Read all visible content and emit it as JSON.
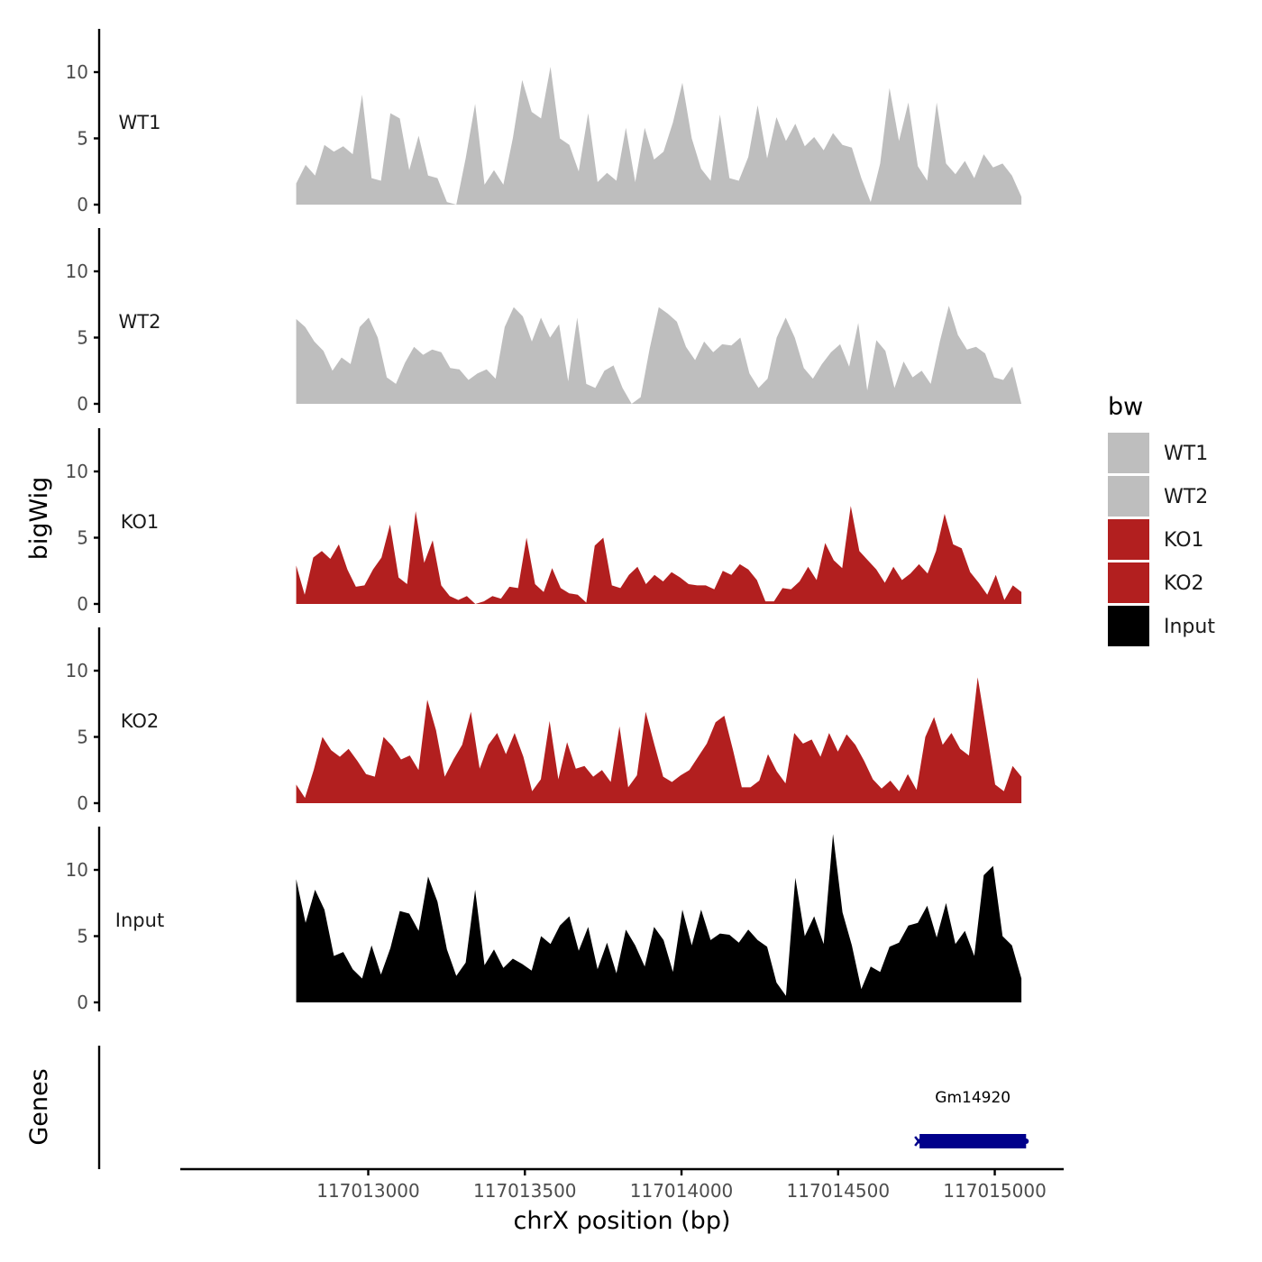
{
  "chart_data": {
    "type": "area",
    "ylabel": "bigWig",
    "xlabel": "chrX position (bp)",
    "xlim": [
      117012400,
      117015220
    ],
    "x_ticks": [
      117013000,
      117013500,
      117014000,
      117014500,
      117015000
    ],
    "x_tick_labels": [
      "117013000",
      "117013500",
      "117014000",
      "117014500",
      "117015000"
    ],
    "ylim": [
      0,
      13.5
    ],
    "y_ticks": [
      0,
      5,
      10
    ],
    "y_tick_labels": [
      "0",
      "5",
      "10"
    ],
    "data_x_range": [
      117012770,
      117015085
    ],
    "legend": {
      "title": "bw",
      "position": "right",
      "entries": [
        {
          "label": "WT1",
          "color": "#bebebe"
        },
        {
          "label": "WT2",
          "color": "#bebebe"
        },
        {
          "label": "KO1",
          "color": "#b21f1f"
        },
        {
          "label": "KO2",
          "color": "#b21f1f"
        },
        {
          "label": "Input",
          "color": "#000000"
        }
      ]
    },
    "series": [
      {
        "name": "WT1",
        "color": "#bebebe",
        "values": [
          1.6,
          3.0,
          2.2,
          4.5,
          4.0,
          4.4,
          3.8,
          8.3,
          2.0,
          1.8,
          6.9,
          6.5,
          2.6,
          5.2,
          2.2,
          2.0,
          0.2,
          0.0,
          3.5,
          7.6,
          1.5,
          2.6,
          1.5,
          5.0,
          9.4,
          7.0,
          6.5,
          10.4,
          5.0,
          4.5,
          2.5,
          6.9,
          1.7,
          2.4,
          1.8,
          5.8,
          1.7,
          5.8,
          3.4,
          4.0,
          6.2,
          9.2,
          5.0,
          2.7,
          1.8,
          6.8,
          2.0,
          1.8,
          3.6,
          7.5,
          3.5,
          6.6,
          4.8,
          6.1,
          4.4,
          5.1,
          4.1,
          5.4,
          4.5,
          4.3,
          2.0,
          0.2,
          3.1,
          8.8,
          4.8,
          7.7,
          2.9,
          1.8,
          7.7,
          3.1,
          2.3,
          3.3,
          2.0,
          3.8,
          2.8,
          3.1,
          2.2,
          0.6
        ]
      },
      {
        "name": "WT2",
        "color": "#bebebe",
        "values": [
          6.4,
          5.8,
          4.7,
          4.0,
          2.5,
          3.5,
          3.0,
          5.8,
          6.5,
          5.0,
          2.0,
          1.5,
          3.1,
          4.3,
          3.7,
          4.1,
          3.9,
          2.7,
          2.6,
          1.8,
          2.3,
          2.6,
          1.9,
          5.8,
          7.3,
          6.6,
          4.7,
          6.5,
          5.0,
          6.0,
          1.7,
          6.5,
          1.5,
          1.2,
          2.5,
          2.9,
          1.2,
          0.0,
          0.5,
          4.2,
          7.3,
          6.8,
          6.2,
          4.3,
          3.3,
          4.7,
          3.9,
          4.5,
          4.4,
          5.0,
          2.3,
          1.2,
          1.9,
          5.0,
          6.5,
          5.0,
          2.7,
          1.9,
          3.0,
          3.9,
          4.5,
          2.8,
          6.1,
          1.0,
          4.8,
          4.0,
          1.2,
          3.2,
          2.0,
          2.5,
          1.5,
          4.7,
          7.4,
          5.2,
          4.1,
          4.3,
          3.8,
          2.0,
          1.8,
          2.8,
          0.0
        ]
      },
      {
        "name": "KO1",
        "color": "#b21f1f",
        "values": [
          2.9,
          0.7,
          3.5,
          4.0,
          3.4,
          4.5,
          2.6,
          1.3,
          1.4,
          2.6,
          3.5,
          6.0,
          2.0,
          1.5,
          7.0,
          3.1,
          4.8,
          1.4,
          0.6,
          0.3,
          0.6,
          0.0,
          0.2,
          0.6,
          0.4,
          1.3,
          1.2,
          5.0,
          1.5,
          0.9,
          2.7,
          1.2,
          0.8,
          0.7,
          0.1,
          4.4,
          5.0,
          1.4,
          1.2,
          2.2,
          2.8,
          1.5,
          2.2,
          1.7,
          2.4,
          2.0,
          1.5,
          1.4,
          1.4,
          1.1,
          2.5,
          2.2,
          3.0,
          2.6,
          1.8,
          0.2,
          0.2,
          1.2,
          1.1,
          1.7,
          2.8,
          1.8,
          4.6,
          3.3,
          2.7,
          7.4,
          4.0,
          3.3,
          2.6,
          1.6,
          2.8,
          1.8,
          2.3,
          3.0,
          2.3,
          4.0,
          6.8,
          4.5,
          4.2,
          2.4,
          1.6,
          0.7,
          2.2,
          0.3,
          1.4,
          0.9
        ]
      },
      {
        "name": "KO2",
        "color": "#b21f1f",
        "values": [
          1.4,
          0.4,
          2.5,
          5.0,
          4.0,
          3.5,
          4.1,
          3.2,
          2.2,
          2.0,
          5.0,
          4.3,
          3.3,
          3.6,
          2.5,
          7.8,
          5.5,
          2.0,
          3.3,
          4.4,
          6.9,
          2.6,
          4.4,
          5.3,
          3.7,
          5.3,
          3.5,
          0.9,
          1.8,
          6.2,
          1.8,
          4.6,
          2.6,
          2.8,
          2.0,
          2.5,
          1.6,
          5.8,
          1.2,
          2.1,
          6.9,
          4.4,
          2.0,
          1.6,
          2.1,
          2.5,
          3.5,
          4.5,
          6.1,
          6.6,
          4.0,
          1.2,
          1.2,
          1.7,
          3.7,
          2.4,
          1.5,
          5.3,
          4.5,
          4.8,
          3.5,
          5.3,
          3.9,
          5.2,
          4.4,
          3.2,
          1.8,
          1.1,
          1.7,
          0.9,
          2.2,
          1.0,
          5.0,
          6.5,
          4.4,
          5.3,
          4.1,
          3.6,
          9.5,
          5.5,
          1.4,
          0.9,
          2.8,
          2.0
        ]
      },
      {
        "name": "Input",
        "color": "#000000",
        "values": [
          9.3,
          6.0,
          8.5,
          7.0,
          3.5,
          3.8,
          2.5,
          1.8,
          4.3,
          2.1,
          4.1,
          6.9,
          6.7,
          5.4,
          9.5,
          7.6,
          4.0,
          2.0,
          3.0,
          8.5,
          2.8,
          4.0,
          2.6,
          3.3,
          2.9,
          2.4,
          5.0,
          4.4,
          5.8,
          6.5,
          3.9,
          5.7,
          2.5,
          4.5,
          2.2,
          5.5,
          4.3,
          2.7,
          5.7,
          4.7,
          2.3,
          7.0,
          4.3,
          7.0,
          4.7,
          5.2,
          5.1,
          4.5,
          5.5,
          4.7,
          4.2,
          1.5,
          0.5,
          9.4,
          5.0,
          6.5,
          4.4,
          12.7,
          6.8,
          4.3,
          1.0,
          2.7,
          2.3,
          4.2,
          4.5,
          5.8,
          6.0,
          7.3,
          4.9,
          7.5,
          4.4,
          5.4,
          3.5,
          9.6,
          10.3,
          5.0,
          4.3,
          1.8
        ]
      }
    ],
    "genes_panel": {
      "ylabel": "Genes",
      "genes": [
        {
          "name": "Gm14920",
          "start": 117014760,
          "end": 117015100,
          "strand": "-",
          "color": "#00008b"
        }
      ]
    }
  }
}
